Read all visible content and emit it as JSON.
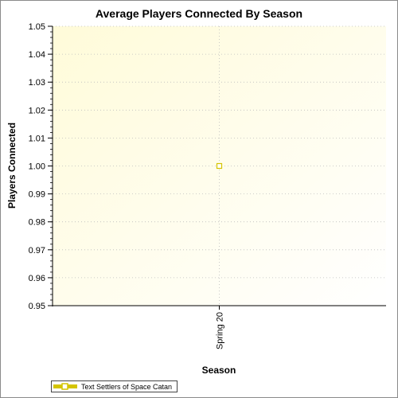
{
  "chart_data": {
    "type": "line",
    "title": "Average Players Connected By Season",
    "xlabel": "Season",
    "ylabel": "Players Connected",
    "categories": [
      "Spring 20"
    ],
    "series": [
      {
        "name": "Text Settlers of Space Catan",
        "values": [
          1.0
        ],
        "color": "#d4c400"
      }
    ],
    "ylim": [
      0.95,
      1.05
    ],
    "yticks": [
      "0.95",
      "0.96",
      "0.97",
      "0.98",
      "0.99",
      "1.00",
      "1.01",
      "1.02",
      "1.03",
      "1.04",
      "1.05"
    ],
    "grid": true,
    "legend": "bottom-left",
    "background_gradient": [
      "#fffbd9",
      "#ffffff"
    ]
  }
}
